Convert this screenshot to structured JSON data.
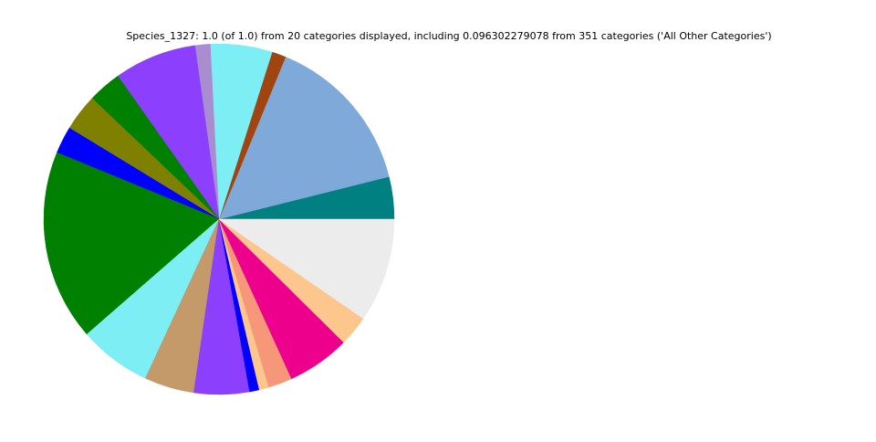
{
  "chart_data": {
    "type": "pie",
    "title": "Species_1327: 1.0 (of 1.0) from 20 categories displayed, including 0.096302279078 from 351 categories ('All Other Categories')",
    "categories": [
      null,
      null,
      null,
      null,
      null,
      null,
      null,
      null,
      null,
      null,
      null,
      null,
      null,
      null,
      null,
      null,
      null,
      null,
      null,
      null
    ],
    "values": [
      0.039,
      0.149,
      0.013,
      0.057,
      0.014,
      0.076,
      0.031,
      0.034,
      0.025,
      0.176,
      0.067,
      0.046,
      0.051,
      0.009,
      0.009,
      0.022,
      0.024,
      0.034,
      0.028,
      0.096
    ],
    "colors": [
      "#008080",
      "#7ea9d9",
      "#a0450f",
      "#7deef4",
      "#a98dd1",
      "#8c3ffc",
      "#008000",
      "#808000",
      "#0000ff",
      "#008000",
      "#7deef4",
      "#c49a6a",
      "#8c3ffc",
      "#0000ff",
      "#fdc68c",
      "#f7977a",
      "#ec008c",
      "#ec008c",
      "#fdc68c",
      "#ececec"
    ],
    "start_angle": 0,
    "counterclockwise": true
  }
}
